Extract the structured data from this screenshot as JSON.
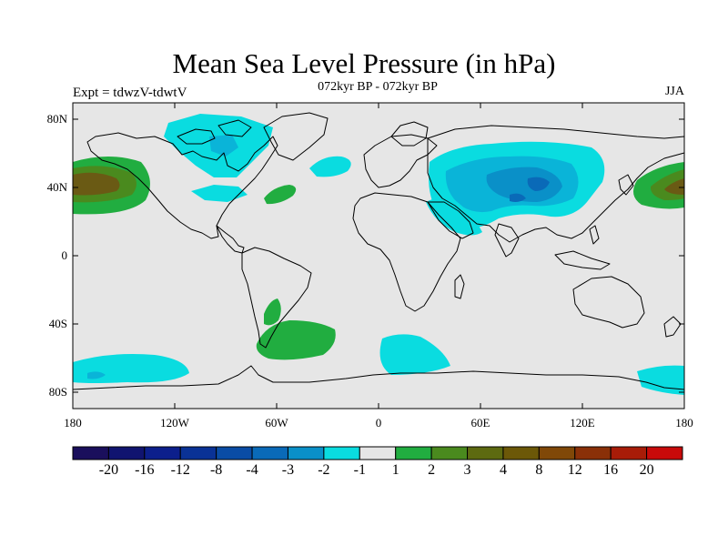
{
  "title": "Mean Sea Level Pressure (in hPa)",
  "subtitle_left": "Expt = tdwzV-tdwtV",
  "subtitle_center": "072kyr BP - 072kyr BP",
  "subtitle_right": "JJA",
  "lat_ticks": [
    "80N",
    "40N",
    "0",
    "40S",
    "80S"
  ],
  "lon_ticks": [
    "180",
    "120W",
    "60W",
    "0",
    "60E",
    "120E",
    "180"
  ],
  "colorbar": {
    "colors": [
      "#1a0f5c",
      "#101470",
      "#0c1f8c",
      "#0a3296",
      "#0a4ca5",
      "#0a6ab8",
      "#0a90c8",
      "#0adce0",
      "#e6e6e6",
      "#21ad40",
      "#4a8a1e",
      "#5d6a10",
      "#6c5808",
      "#804808",
      "#8a3008",
      "#a81c08",
      "#c80a0a"
    ],
    "labels": [
      "-20",
      "-16",
      "-12",
      "-8",
      "-4",
      "-3",
      "-2",
      "-1",
      "1",
      "2",
      "3",
      "4",
      "8",
      "12",
      "16",
      "20"
    ]
  },
  "colors": {
    "background": "#e6e6e6",
    "cyan": "#0adce0",
    "blue1": "#0ab4d8",
    "blue2": "#0a90c8",
    "blue3": "#0a6ab8",
    "green1": "#21ad40",
    "green2": "#4a8a1e",
    "brown": "#6a5a14"
  }
}
